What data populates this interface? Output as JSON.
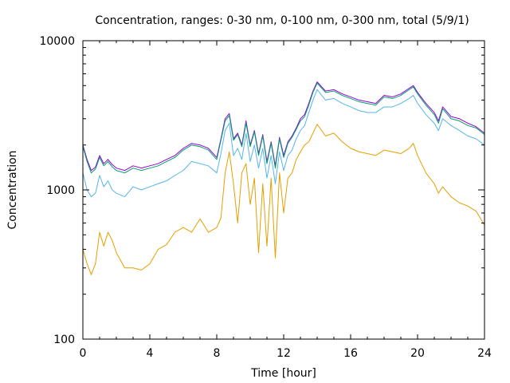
{
  "chart_data": {
    "type": "line",
    "title": "Concentration, ranges: 0-30 nm, 0-100 nm, 0-300 nm, total (5/9/1)",
    "xlabel": "Time [hour]",
    "ylabel": "Concentration",
    "xlim": [
      0,
      24
    ],
    "ylim": [
      100,
      10000
    ],
    "yscale": "log",
    "xticks": [
      0,
      4,
      8,
      12,
      16,
      20,
      24
    ],
    "xtick_labels": [
      "0",
      "4",
      "8",
      "12",
      "16",
      "20",
      "24"
    ],
    "yticks": [
      100,
      1000,
      10000
    ],
    "ytick_labels": [
      "100",
      "1000",
      "10000"
    ],
    "grid": false,
    "legend": "none",
    "x": [
      0,
      0.25,
      0.5,
      0.75,
      1,
      1.25,
      1.5,
      1.75,
      2,
      2.5,
      3,
      3.5,
      4,
      4.5,
      5,
      5.5,
      6,
      6.5,
      7,
      7.5,
      8,
      8.25,
      8.5,
      8.75,
      9,
      9.25,
      9.5,
      9.75,
      10,
      10.25,
      10.5,
      10.75,
      11,
      11.25,
      11.5,
      11.75,
      12,
      12.25,
      12.5,
      12.75,
      13,
      13.25,
      13.5,
      13.75,
      14,
      14.5,
      15,
      15.5,
      16,
      16.5,
      17,
      17.5,
      18,
      18.5,
      19,
      19.5,
      19.75,
      20,
      20.5,
      21,
      21.25,
      21.5,
      22,
      22.5,
      23,
      23.5,
      24
    ],
    "series": [
      {
        "color": "#9400d3",
        "values": [
          2000,
          1600,
          1350,
          1420,
          1700,
          1500,
          1600,
          1480,
          1400,
          1350,
          1450,
          1400,
          1450,
          1500,
          1600,
          1700,
          1900,
          2050,
          2000,
          1900,
          1650,
          2200,
          3000,
          3250,
          2200,
          2400,
          2000,
          2900,
          2000,
          2500,
          1750,
          2350,
          1550,
          2100,
          1450,
          2250,
          1700,
          2100,
          2300,
          2600,
          3000,
          3200,
          3800,
          4600,
          5300,
          4600,
          4700,
          4400,
          4200,
          4000,
          3900,
          3800,
          4300,
          4200,
          4400,
          4800,
          5000,
          4500,
          3800,
          3300,
          2900,
          3600,
          3100,
          3000,
          2800,
          2650,
          2400
        ]
      },
      {
        "color": "#009e73",
        "values": [
          1950,
          1550,
          1300,
          1380,
          1650,
          1450,
          1550,
          1430,
          1350,
          1300,
          1400,
          1350,
          1400,
          1450,
          1550,
          1650,
          1850,
          2000,
          1950,
          1850,
          1600,
          2150,
          2900,
          3150,
          2150,
          2350,
          1950,
          2800,
          1950,
          2450,
          1700,
          2300,
          1500,
          2050,
          1400,
          2200,
          1650,
          2050,
          2250,
          2550,
          2900,
          3100,
          3700,
          4500,
          5200,
          4500,
          4600,
          4300,
          4100,
          3900,
          3800,
          3700,
          4200,
          4100,
          4300,
          4700,
          4900,
          4400,
          3700,
          3200,
          2800,
          3500,
          3000,
          2900,
          2700,
          2600,
          2350
        ]
      },
      {
        "color": "#56b4e9",
        "values": [
          1300,
          1000,
          900,
          950,
          1250,
          1050,
          1150,
          1000,
          950,
          900,
          1050,
          1000,
          1050,
          1100,
          1150,
          1250,
          1350,
          1550,
          1500,
          1450,
          1300,
          1750,
          2500,
          2800,
          1700,
          1900,
          1600,
          2400,
          1550,
          2000,
          1400,
          1900,
          1200,
          1700,
          1100,
          1800,
          1350,
          1700,
          1850,
          2200,
          2500,
          2700,
          3300,
          4000,
          4700,
          4000,
          4100,
          3800,
          3600,
          3400,
          3300,
          3300,
          3600,
          3600,
          3800,
          4100,
          4300,
          3800,
          3200,
          2800,
          2500,
          3000,
          2700,
          2500,
          2300,
          2200,
          2000
        ]
      },
      {
        "color": "#e69f00",
        "values": [
          400,
          320,
          270,
          320,
          520,
          420,
          520,
          460,
          380,
          300,
          300,
          290,
          320,
          400,
          430,
          520,
          560,
          520,
          640,
          520,
          560,
          650,
          1300,
          1800,
          1100,
          600,
          1300,
          1500,
          800,
          1200,
          380,
          1100,
          420,
          1200,
          350,
          1300,
          700,
          1200,
          1300,
          1600,
          1800,
          2000,
          2100,
          2400,
          2750,
          2300,
          2400,
          2100,
          1900,
          1800,
          1750,
          1700,
          1850,
          1800,
          1750,
          1900,
          2050,
          1700,
          1300,
          1100,
          950,
          1050,
          900,
          820,
          780,
          720,
          580
        ]
      }
    ]
  }
}
